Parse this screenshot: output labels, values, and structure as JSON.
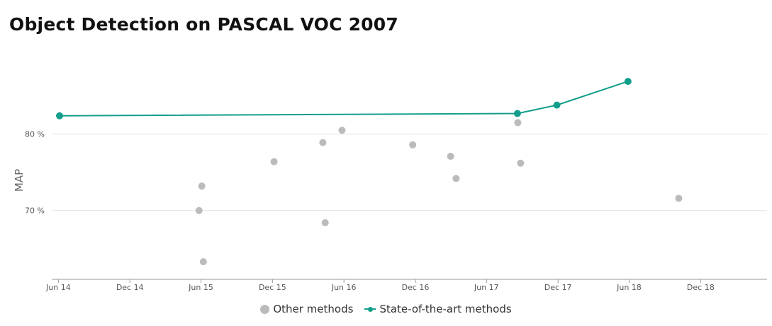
{
  "title": "Object Detection on PASCAL VOC 2007",
  "chart_data": {
    "type": "scatter",
    "title": "Object Detection on PASCAL VOC 2007",
    "ylabel": "MAP",
    "xlabel": "",
    "y_ticks": [
      {
        "value": 70,
        "label": "70 %"
      },
      {
        "value": 80,
        "label": "80 %"
      }
    ],
    "x_ticks": [
      {
        "date": "2014-06-01",
        "label": "Jun 14"
      },
      {
        "date": "2014-12-01",
        "label": "Dec 14"
      },
      {
        "date": "2015-06-01",
        "label": "Jun 15"
      },
      {
        "date": "2015-12-01",
        "label": "Dec 15"
      },
      {
        "date": "2016-06-01",
        "label": "Jun 16"
      },
      {
        "date": "2016-12-01",
        "label": "Dec 16"
      },
      {
        "date": "2017-06-01",
        "label": "Jun 17"
      },
      {
        "date": "2017-12-01",
        "label": "Dec 17"
      },
      {
        "date": "2018-06-01",
        "label": "Jun 18"
      },
      {
        "date": "2018-12-01",
        "label": "Dec 18"
      }
    ],
    "xlim": [
      "2014-05-15",
      "2019-05-20"
    ],
    "ylim": [
      61,
      92
    ],
    "grid": true,
    "legend_position": "bottom",
    "series": [
      {
        "name": "Other methods",
        "kind": "scatter",
        "color": "#bbbbbb",
        "points": [
          {
            "x": "2015-05-27",
            "y": 70.0
          },
          {
            "x": "2015-06-03",
            "y": 73.2
          },
          {
            "x": "2015-06-07",
            "y": 63.3
          },
          {
            "x": "2015-12-05",
            "y": 76.4
          },
          {
            "x": "2016-04-08",
            "y": 78.9
          },
          {
            "x": "2016-04-14",
            "y": 68.4
          },
          {
            "x": "2016-05-27",
            "y": 80.5
          },
          {
            "x": "2016-11-24",
            "y": 78.6
          },
          {
            "x": "2017-03-01",
            "y": 77.1
          },
          {
            "x": "2017-03-15",
            "y": 74.2
          },
          {
            "x": "2017-08-20",
            "y": 81.5
          },
          {
            "x": "2017-08-27",
            "y": 76.2
          },
          {
            "x": "2018-10-06",
            "y": 71.6
          }
        ]
      },
      {
        "name": "State-of-the-art methods",
        "kind": "line",
        "color": "#139e8c",
        "points": [
          {
            "x": "2014-06-04",
            "y": 82.4
          },
          {
            "x": "2017-08-19",
            "y": 82.7
          },
          {
            "x": "2017-11-28",
            "y": 83.8
          },
          {
            "x": "2018-05-29",
            "y": 86.9
          }
        ]
      }
    ]
  }
}
